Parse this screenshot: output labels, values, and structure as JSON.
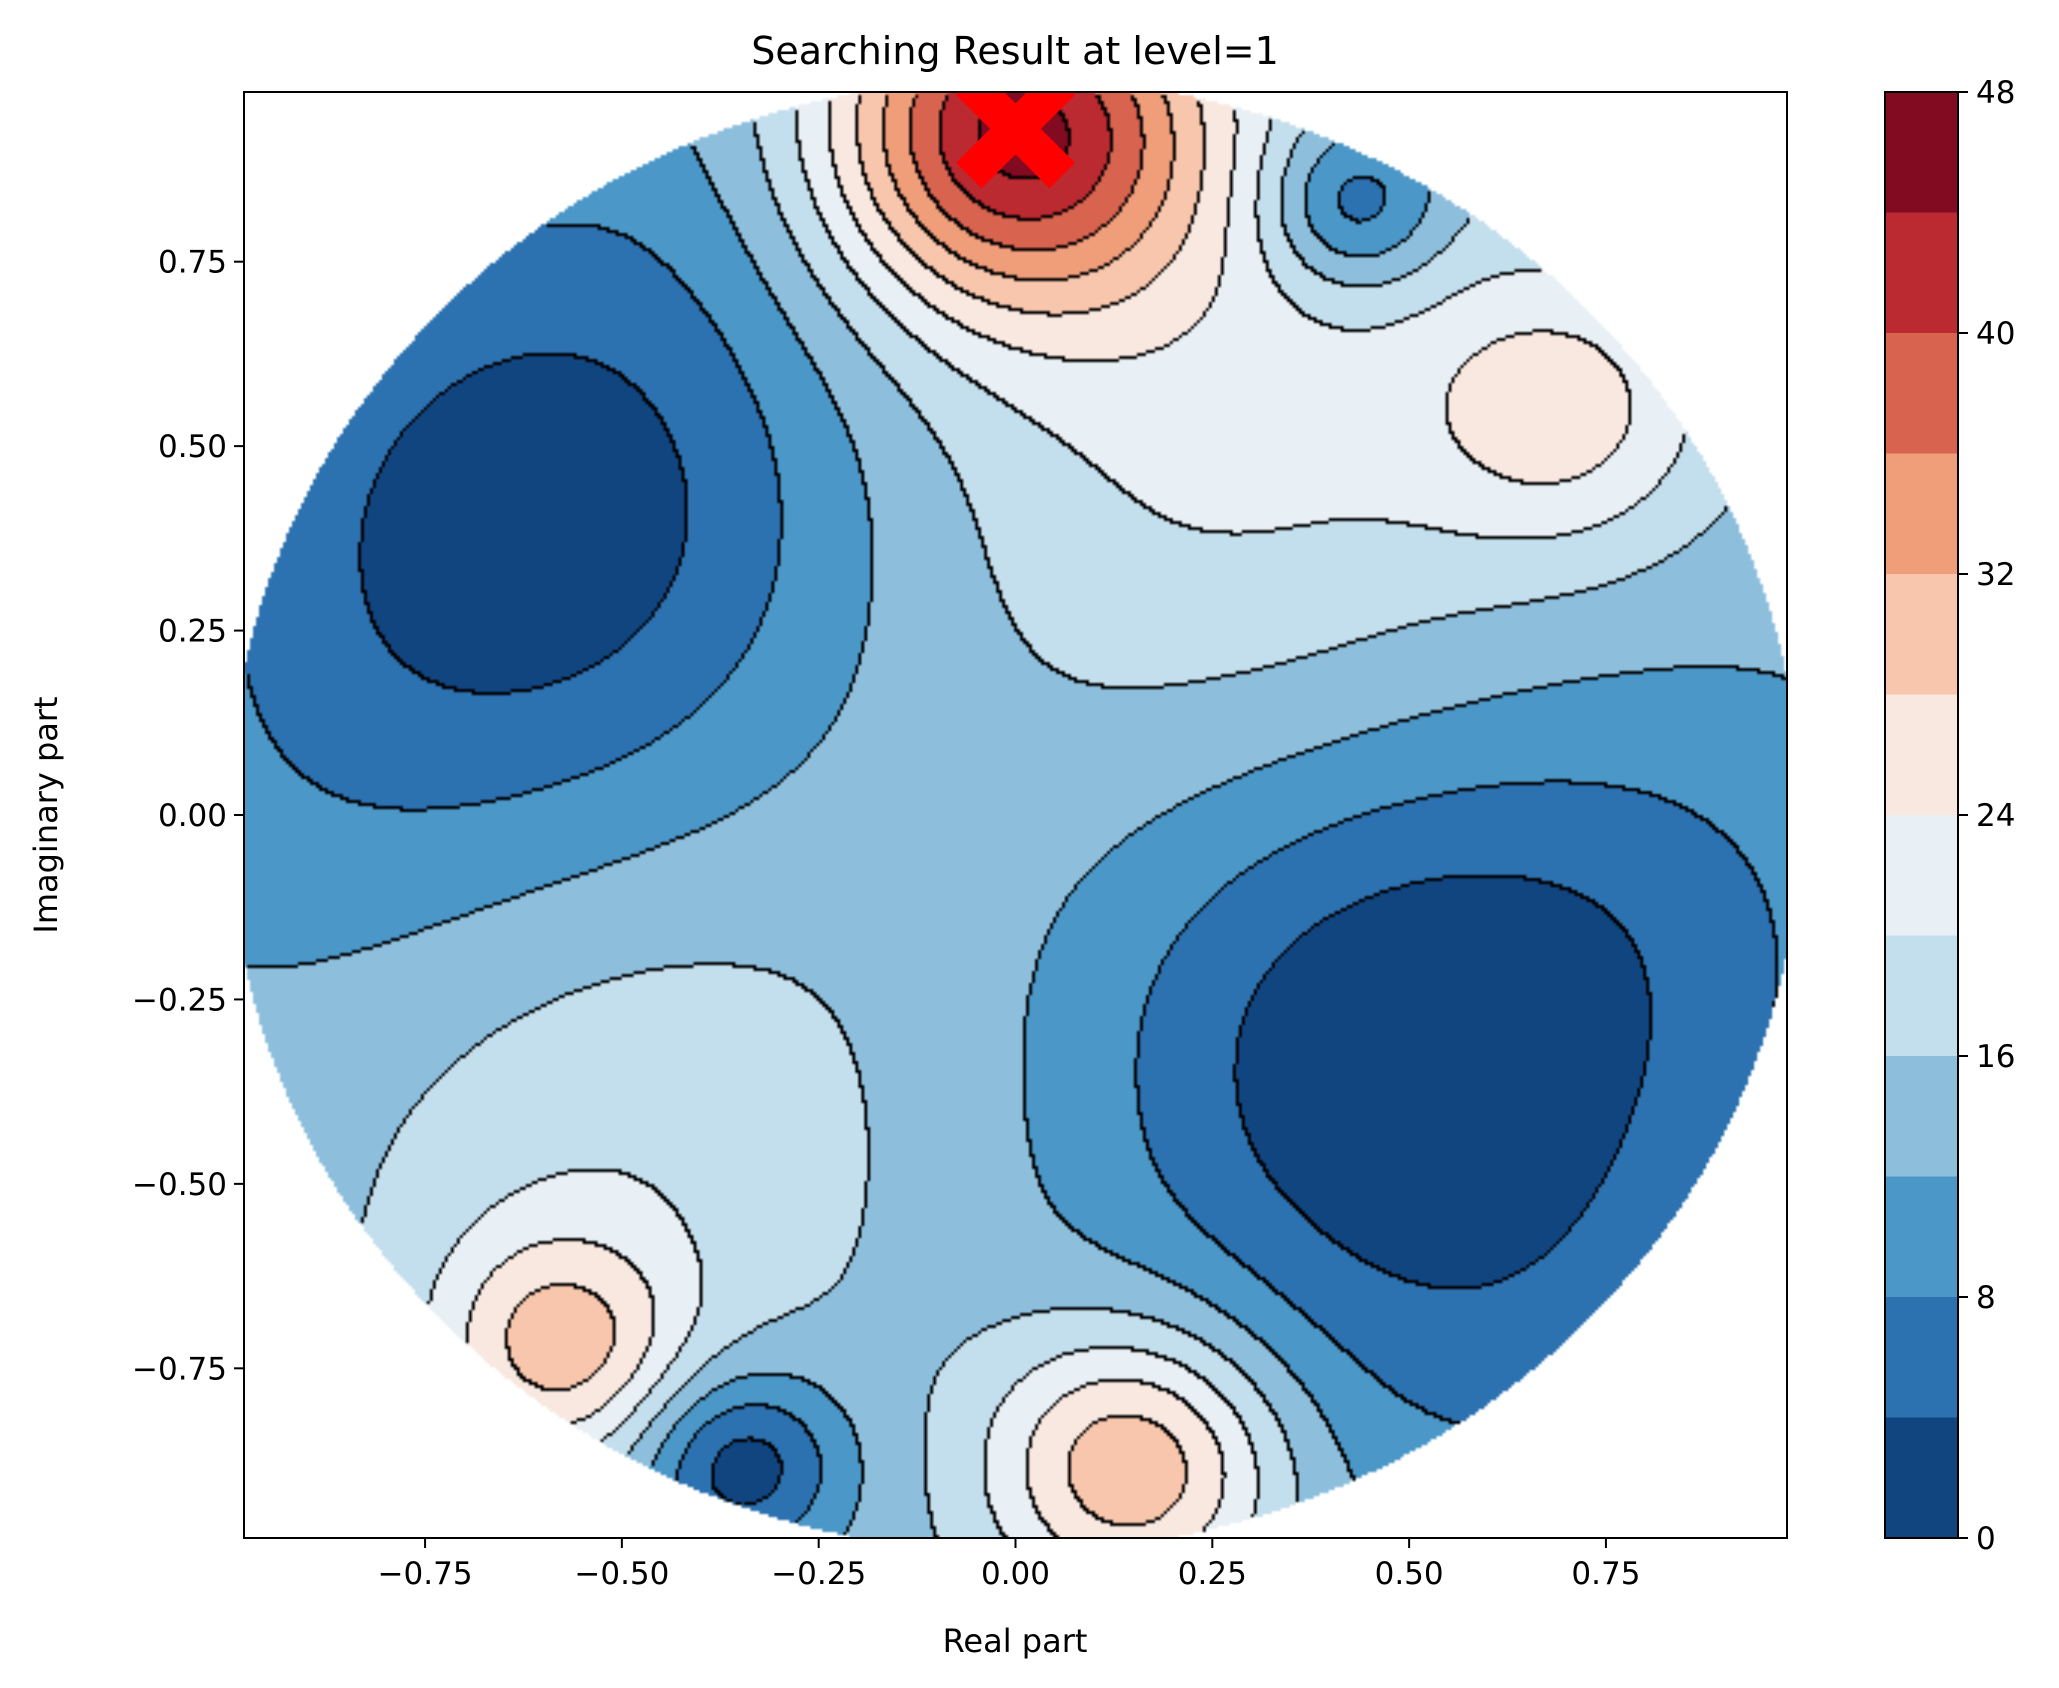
{
  "chart_data": {
    "type": "contourf",
    "title": "Searching Result at level=1",
    "xlabel": "Real part",
    "ylabel": "Imaginary part",
    "xlim": [
      -0.98,
      0.98
    ],
    "ylim": [
      -0.98,
      0.98
    ],
    "xticks": [
      -0.75,
      -0.5,
      -0.25,
      0.0,
      0.25,
      0.5,
      0.75
    ],
    "xtick_labels": [
      "−0.75",
      "−0.50",
      "−0.25",
      "0.00",
      "0.25",
      "0.50",
      "0.75"
    ],
    "yticks": [
      -0.75,
      -0.5,
      -0.25,
      0.0,
      0.25,
      0.5,
      0.75
    ],
    "ytick_labels": [
      "−0.75",
      "−0.50",
      "−0.25",
      "0.00",
      "0.25",
      "0.50",
      "0.75"
    ],
    "domain": "unit disk |z| <= 1",
    "grid": false,
    "colorbar": {
      "levels": [
        0,
        4,
        8,
        12,
        16,
        20,
        24,
        28,
        32,
        36,
        40,
        44,
        48
      ],
      "ticks": [
        0,
        8,
        16,
        24,
        32,
        40,
        48
      ],
      "tick_labels": [
        "0",
        "8",
        "16",
        "24",
        "32",
        "40",
        "48"
      ],
      "colormap": "RdBu_r",
      "colors": [
        "#114580",
        "#2c71b0",
        "#4a97c8",
        "#8dbfdd",
        "#c3deec",
        "#e8f0f5",
        "#f9e8e0",
        "#f8c6ac",
        "#f09d7a",
        "#d8634f",
        "#ba2a30",
        "#820b22"
      ]
    },
    "features": [
      {
        "kind": "maximum",
        "x": 0.0,
        "y": 0.92,
        "level": 40
      },
      {
        "kind": "local-maximum",
        "x": 0.15,
        "y": -0.88,
        "level": 32
      },
      {
        "kind": "local-maximum",
        "x": -0.58,
        "y": -0.72,
        "level": 28
      },
      {
        "kind": "local-maximum",
        "x": 0.7,
        "y": 0.55,
        "level": 24
      },
      {
        "kind": "minimum",
        "x": 0.48,
        "y": -0.32,
        "level": 0
      },
      {
        "kind": "minimum",
        "x": -0.6,
        "y": 0.4,
        "level": 0
      },
      {
        "kind": "minimum",
        "x": -0.35,
        "y": -0.88,
        "level": 0
      },
      {
        "kind": "minimum",
        "x": 0.43,
        "y": 0.83,
        "level": 0
      }
    ],
    "marker": {
      "symbol": "X",
      "x": 0.0,
      "y": 0.93,
      "color": "#ff0000"
    }
  }
}
